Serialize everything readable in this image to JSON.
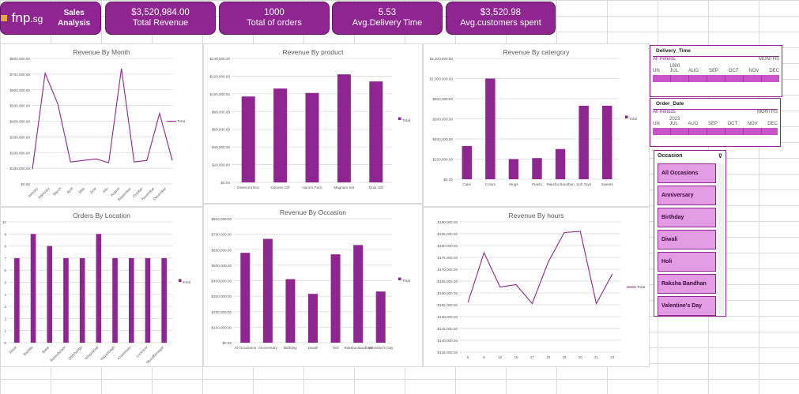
{
  "header": {
    "logo": "fnp",
    "logo_suffix": ".sg",
    "title": "Sales Analysis",
    "kpis": [
      {
        "value": "$3,520,984.00",
        "label": "Total Revenue"
      },
      {
        "value": "1000",
        "label": "Total of orders"
      },
      {
        "value": "5.53",
        "label": "Avg.Delivery Time"
      },
      {
        "value": "$3,520.98",
        "label": "Avg.customers spent"
      }
    ]
  },
  "accent": "#8e2590",
  "chart_data": [
    {
      "id": "month",
      "type": "line",
      "title": "Revenue By Month",
      "categories": [
        "January",
        "February",
        "March",
        "April",
        "May",
        "June",
        "July",
        "August",
        "September",
        "October",
        "November",
        "December"
      ],
      "series": [
        {
          "name": "Total",
          "values": [
            95000,
            705000,
            510000,
            140000,
            150000,
            160000,
            135000,
            735000,
            140000,
            150000,
            450000,
            150000
          ]
        }
      ],
      "ylim": [
        0,
        800000
      ],
      "yticks": [
        "$0.00",
        "$100,000.00",
        "$200,000.00",
        "$300,000.00",
        "$400,000.00",
        "$500,000.00",
        "$600,000.00",
        "$700,000.00",
        "$800,000.00"
      ],
      "legend": "right",
      "grid": true
    },
    {
      "id": "product",
      "type": "bar",
      "title": "Revenue By product",
      "categories": [
        "Deserunt Box",
        "Dolores Gift",
        "Harum Pack",
        "Magnam Set",
        "Quia Gift"
      ],
      "series": [
        {
          "name": "Total",
          "values": [
            97000,
            106000,
            101000,
            122000,
            114000
          ]
        }
      ],
      "ylim": [
        0,
        140000
      ],
      "yticks": [
        "$0.00",
        "$20,000.00",
        "$40,000.00",
        "$60,000.00",
        "$80,000.00",
        "$100,000.00",
        "$120,000.00",
        "$140,000.00"
      ],
      "legend": "right",
      "grid": true
    },
    {
      "id": "category",
      "type": "bar",
      "title": "Revenue By catergory",
      "categories": [
        "Cake",
        "Colors",
        "Mugs",
        "Plants",
        "Raksha Bandhan",
        "Soft Toys",
        "Sweets"
      ],
      "series": [
        {
          "name": "Total",
          "values": [
            330000,
            1000000,
            200000,
            210000,
            300000,
            730000,
            730000
          ]
        }
      ],
      "ylim": [
        0,
        1200000
      ],
      "yticks": [
        "$0.00",
        "$200,000.00",
        "$400,000.00",
        "$600,000.00",
        "$800,000.00",
        "$1,000,000.00",
        "$1,200,000.00"
      ],
      "legend": "right",
      "grid": true
    },
    {
      "id": "location",
      "type": "bar",
      "title": "Orders By Location",
      "categories": [
        "Alwar",
        "Bareilly",
        "Bidar",
        "Bulandshahr",
        "Darbhanga",
        "Ghaziabad",
        "Hazaribagh",
        "Khammam",
        "Lucknow",
        "Muzaffarnagar"
      ],
      "series": [
        {
          "name": "Total",
          "values": [
            7,
            9,
            8,
            7,
            7,
            9,
            7,
            7,
            7,
            7
          ]
        }
      ],
      "ylim": [
        0,
        10
      ],
      "yticks": [
        "0",
        "1",
        "2",
        "3",
        "4",
        "5",
        "6",
        "7",
        "8",
        "9",
        "10"
      ],
      "legend": "right",
      "grid": true
    },
    {
      "id": "occasion",
      "type": "bar",
      "title": "Revenue By Occasion",
      "categories": [
        "All Occasions",
        "Anniversary",
        "Birthday",
        "Diwali",
        "Holi",
        "Raksha Bandhan",
        "Valentine's Day"
      ],
      "series": [
        {
          "name": "Total",
          "values": [
            580000,
            670000,
            410000,
            315000,
            570000,
            630000,
            330000
          ]
        }
      ],
      "ylim": [
        0,
        800000
      ],
      "yticks": [
        "$0.00",
        "$100,000.00",
        "$200,000.00",
        "$300,000.00",
        "$400,000.00",
        "$500,000.00",
        "$600,000.00",
        "$700,000.00",
        "$800,000.00"
      ],
      "legend": "right",
      "grid": true
    },
    {
      "id": "hours",
      "type": "line",
      "title": "Revenue By hours",
      "categories": [
        "5",
        "6",
        "12",
        "15",
        "17",
        "18",
        "19",
        "20",
        "21",
        "23"
      ],
      "series": [
        {
          "name": "Total",
          "values": [
            156000,
            177000,
            162500,
            163500,
            155500,
            173000,
            185500,
            186000,
            155500,
            168000
          ]
        }
      ],
      "ylim": [
        135000,
        190000
      ],
      "yticks": [
        "$135,000.00",
        "$140,000.00",
        "$145,000.00",
        "$150,000.00",
        "$155,000.00",
        "$160,000.00",
        "$165,000.00",
        "$170,000.00",
        "$175,000.00",
        "$180,000.00",
        "$185,000.00",
        "$190,000.00"
      ],
      "legend": "right",
      "grid": true
    }
  ],
  "timelines": [
    {
      "title": "Delivery_Time",
      "all": "All Periods",
      "unit": "MONTHS",
      "year": "1900",
      "months": [
        "UN",
        "JUL",
        "AUG",
        "SEP",
        "OCT",
        "NOV",
        "DEC"
      ]
    },
    {
      "title": "Order_Date",
      "all": "All Periods",
      "unit": "MONTHS",
      "year": "2023",
      "months": [
        "UN",
        "JUL",
        "AUG",
        "SEP",
        "OCT",
        "NOV",
        "DEC"
      ]
    }
  ],
  "occasion_slicer": {
    "title": "Occasion",
    "items": [
      "All Occasions",
      "Anniversary",
      "Birthday",
      "Diwali",
      "Holi",
      "Raksha Bandhan",
      "Valentine's Day"
    ]
  }
}
